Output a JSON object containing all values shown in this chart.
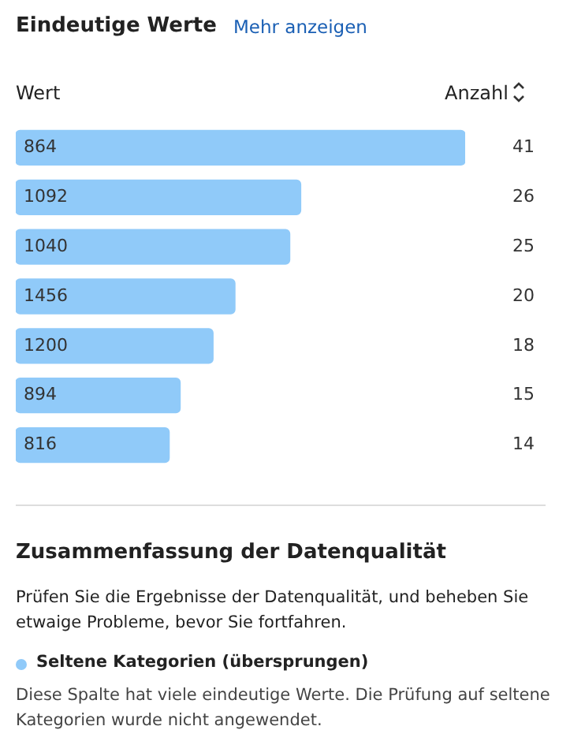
{
  "chart_data": {
    "type": "bar",
    "orientation": "horizontal",
    "title": "Eindeutige Werte",
    "ylabel": "Wert",
    "xlabel": "Anzahl",
    "categories": [
      "864",
      "1092",
      "1040",
      "1456",
      "1200",
      "894",
      "816"
    ],
    "values": [
      41,
      26,
      25,
      20,
      18,
      15,
      14
    ],
    "color": "#90caf9",
    "data_labels": true,
    "legend": false,
    "tick_labels": "y",
    "annotations": [
      "Mehr anzeigen",
      "Zusammenfassung der Datenqualität",
      "Prüfen Sie die Ergebnisse der Datenqualität, und beheben Sie etwaige Probleme, bevor Sie fortfahren.",
      "Seltene Kategorien (übersprungen)",
      "Diese Spalte hat viele eindeutige Werte. Die Prüfung auf seltene Kategorien wurde nicht angewendet."
    ]
  }
}
